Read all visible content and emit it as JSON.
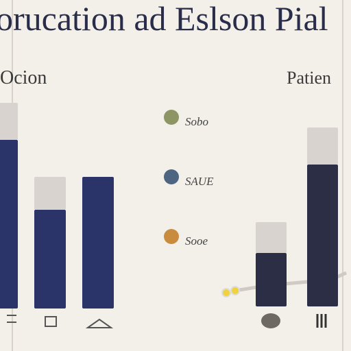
{
  "header": {
    "title": "oruсation  ad Eslson Pial"
  },
  "legend": {
    "items": [
      {
        "label": "Sobo",
        "color": "#8c9563"
      },
      {
        "label": "SAUE",
        "color": "#4d6580"
      },
      {
        "label": "Sooe",
        "color": "#c98c3e"
      }
    ]
  },
  "chart_data": [
    {
      "type": "bar",
      "title": "Ocion",
      "categories": [
        null,
        null,
        null
      ],
      "ylim": [
        0,
        100
      ],
      "series": [
        {
          "color": "#2b3468",
          "values": [
            82,
            48,
            64
          ]
        },
        {
          "color": "#d9d3cf",
          "values": [
            18,
            16,
            0
          ]
        }
      ]
    },
    {
      "type": "bar",
      "title": "Patien",
      "categories": [
        null,
        null
      ],
      "ylim": [
        0,
        100
      ],
      "series": [
        {
          "color": "#2b2e45",
          "values": [
            26,
            69
          ]
        },
        {
          "color": "#d8d3cf",
          "values": [
            15,
            18
          ]
        }
      ]
    }
  ]
}
